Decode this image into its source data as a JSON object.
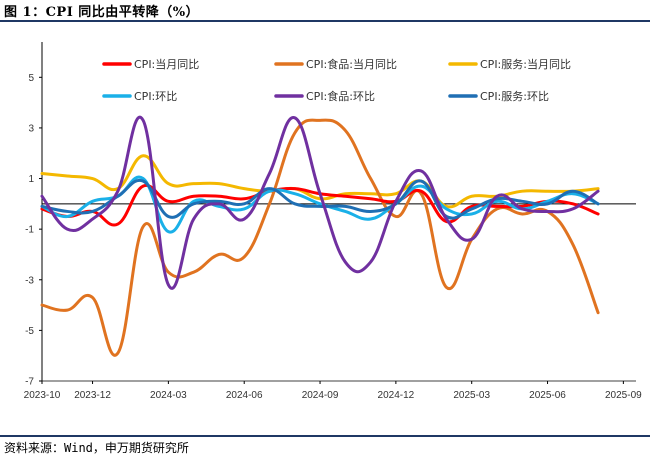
{
  "figure_title": "图 1：CPI 同比由平转降（%）",
  "source": "资料来源：Wind，申万期货研究所",
  "chart_data": {
    "type": "line",
    "title": "",
    "xlabel": "",
    "ylabel": "",
    "ylim": [
      -7,
      6
    ],
    "yticks": [
      5,
      3,
      1,
      -1,
      -3,
      -5,
      -7
    ],
    "xticks": [
      "2023-10",
      "2023-12",
      "2024-03",
      "2024-06",
      "2024-09",
      "2024-12",
      "2025-03",
      "2025-06",
      "2025-09"
    ],
    "x": [
      "2023-10",
      "2023-11",
      "2023-12",
      "2024-01",
      "2024-02",
      "2024-03",
      "2024-04",
      "2024-05",
      "2024-06",
      "2024-07",
      "2024-08",
      "2024-09",
      "2024-10",
      "2024-11",
      "2024-12",
      "2025-01",
      "2025-02",
      "2025-03",
      "2025-04",
      "2025-05",
      "2025-06",
      "2025-07",
      "2025-08"
    ],
    "grid": false,
    "legend_position": "top",
    "series": [
      {
        "name": "CPI:当月同比",
        "color": "#ff0000",
        "values": [
          -0.2,
          -0.5,
          -0.3,
          -0.8,
          0.7,
          0.1,
          0.3,
          0.3,
          0.2,
          0.5,
          0.6,
          0.4,
          0.3,
          0.2,
          0.1,
          0.5,
          -0.7,
          -0.1,
          -0.1,
          -0.1,
          0.1,
          0.0,
          -0.4
        ]
      },
      {
        "name": "CPI:食品:当月同比",
        "color": "#e07320",
        "values": [
          -4.0,
          -4.2,
          -3.7,
          -5.9,
          -0.9,
          -2.7,
          -2.7,
          -2.0,
          -2.1,
          0.0,
          2.8,
          3.3,
          2.9,
          1.0,
          -0.5,
          0.4,
          -3.3,
          -1.4,
          -0.2,
          -0.4,
          -0.3,
          -1.6,
          -4.3
        ]
      },
      {
        "name": "CPI:服务:当月同比",
        "color": "#f4b800",
        "values": [
          1.2,
          1.1,
          1.0,
          0.6,
          1.9,
          0.8,
          0.8,
          0.8,
          0.6,
          0.5,
          0.6,
          0.2,
          0.4,
          0.4,
          0.4,
          0.9,
          -0.1,
          0.3,
          0.3,
          0.5,
          0.5,
          0.5,
          0.6
        ]
      },
      {
        "name": "CPI:环比",
        "color": "#1ab0e8",
        "values": [
          -0.1,
          -0.5,
          0.1,
          0.3,
          1.0,
          -1.1,
          0.1,
          -0.1,
          -0.2,
          0.5,
          0.4,
          0.0,
          -0.3,
          -0.6,
          0.0,
          0.7,
          -0.2,
          -0.4,
          0.1,
          -0.2,
          0.1,
          0.4,
          0.0
        ]
      },
      {
        "name": "CPI:食品:环比",
        "color": "#7030a0",
        "values": [
          0.3,
          -1.0,
          -0.6,
          0.5,
          3.3,
          -3.2,
          -0.6,
          0.0,
          -0.6,
          1.2,
          3.4,
          0.4,
          -2.3,
          -2.3,
          0.1,
          1.3,
          -0.6,
          -1.4,
          0.3,
          -0.2,
          -0.3,
          -0.2,
          0.5
        ]
      },
      {
        "name": "CPI:服务:环比",
        "color": "#1f6fb4",
        "values": [
          -0.1,
          -0.3,
          -0.3,
          0.3,
          0.9,
          -0.5,
          0.0,
          0.1,
          0.0,
          0.6,
          0.0,
          -0.1,
          -0.1,
          -0.3,
          0.0,
          0.9,
          -0.5,
          -0.2,
          0.2,
          0.1,
          0.0,
          0.5,
          0.0
        ]
      }
    ]
  }
}
